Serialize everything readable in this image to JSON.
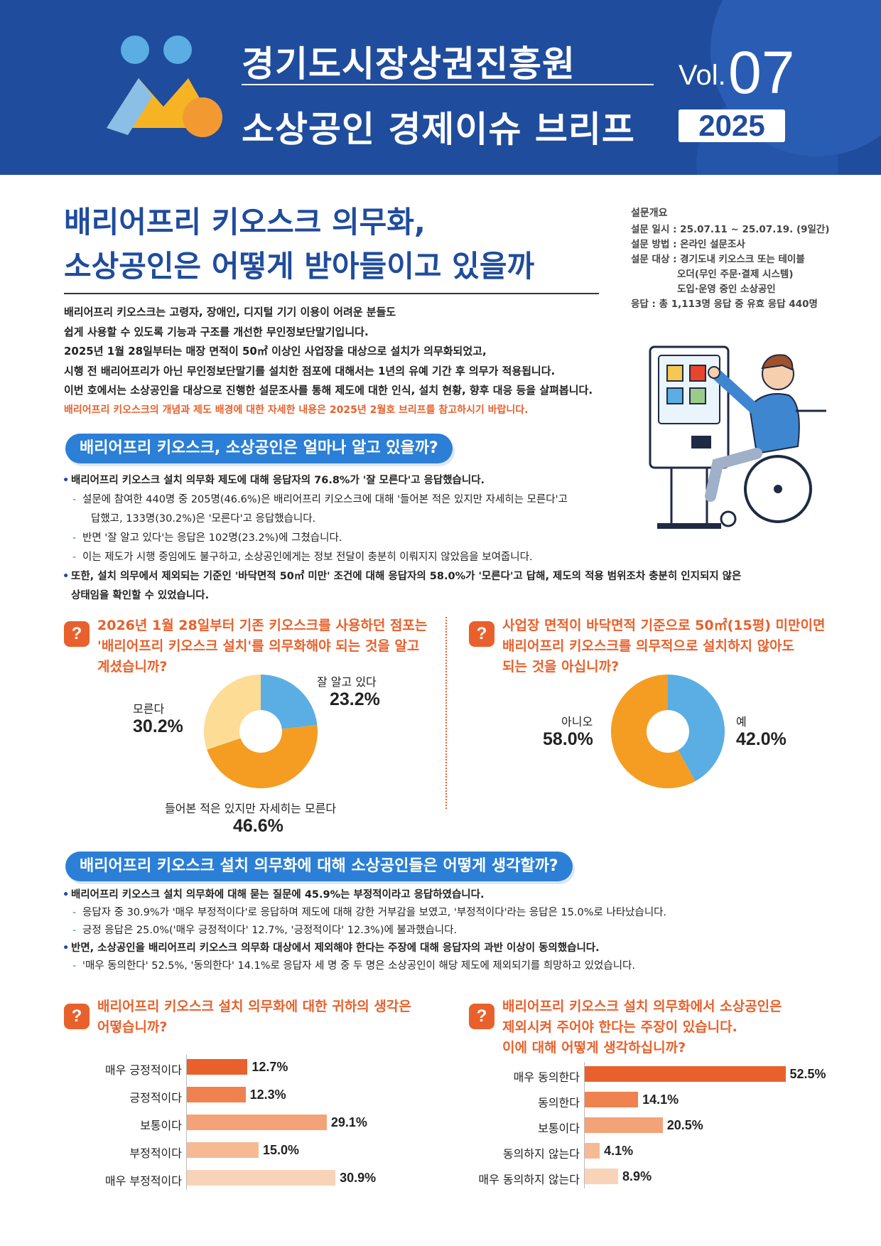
{
  "header": {
    "org": "경기도시장상권진흥원",
    "series": "소상공인 경제이슈 브리프",
    "vol_label": "Vol.",
    "vol_num": "07",
    "year": "2025"
  },
  "title": {
    "line1": "배리어프리 키오스크 의무화,",
    "line2": "소상공인은 어떻게 받아들이고 있을까"
  },
  "survey": {
    "heading": "설문개요",
    "date": "설문 일시 : 25.07.11 ~ 25.07.19. (9일간)",
    "method": "설문 방법 : 온라인 설문조사",
    "target1": "설문 대상 : 경기도내 키오스크 또는 테이블",
    "target2": "오더(무인 주문·결제 시스템)",
    "target3": "도입·운영 중인 소상공인",
    "response": "응답 : 총 1,113명 응답 중 유효 응답 440명"
  },
  "intro": {
    "p1": "배리어프리 키오스크는 고령자, 장애인, 디지털 기기 이용이 어려운 분들도",
    "p2": "쉽게 사용할 수 있도록 기능과 구조를 개선한 무인정보단말기입니다.",
    "p3": "2025년 1월 28일부터는 매장 면적이 50㎡ 이상인 사업장을 대상으로 설치가 의무화되었고,",
    "p4": "시행 전 배리어프리가 아닌 무인정보단말기를 설치한 점포에 대해서는 1년의 유예 기간 후 의무가 적용됩니다.",
    "p5": "이번 호에서는 소상공인을 대상으로 진행한 설문조사를 통해 제도에 대한 인식, 설치 현황, 향후 대응 등을 살펴봅니다.",
    "note": "배리어프리 키오스크의 개념과 제도 배경에 대한 자세한 내용은 2025년 2월호 브리프를 참고하시기 바랍니다."
  },
  "section1": {
    "title": "배리어프리 키오스크, 소상공인은 얼마나 알고 있을까?",
    "b1": "배리어프리 키오스크 설치 의무화 제도에 대해 응답자의 76.8%가 '잘 모른다'고 응답했습니다.",
    "b1a": "설문에 참여한 440명 중 205명(46.6%)은 배리어프리 키오스크에 대해 '들어본 적은 있지만 자세히는 모른다'고",
    "b1a2": "답했고, 133명(30.2%)은 '모른다'고 응답했습니다.",
    "b1b": "반면 '잘 알고 있다'는 응답은 102명(23.2%)에 그쳤습니다.",
    "b1c": "이는 제도가 시행 중임에도 불구하고, 소상공인에게는 정보 전달이 충분히 이뤄지지 않았음을 보여줍니다.",
    "b2": "또한, 설치 의무에서 제외되는 기준인 '바닥면적 50㎡ 미만' 조건에 대해 응답자의 58.0%가 '모른다'고 답해, 제도의 적용 범위조차 충분히 인지되지 않은",
    "b2b": "상태임을 확인할 수 있었습니다."
  },
  "q1": {
    "icon": "?",
    "text1": "2026년 1월 28일부터 기존 키오스크를 사용하던 점포는",
    "text2": "'배리어프리 키오스크 설치'를 의무화해야 되는 것을 알고",
    "text3": "계셨습니까?"
  },
  "q2": {
    "icon": "?",
    "text1": "사업장 면적이 바닥면적 기준으로 50㎡(15평) 미만이면",
    "text2": "배리어프리 키오스크를 의무적으로 설치하지 않아도",
    "text3": "되는 것을 아십니까?"
  },
  "section2": {
    "title": "배리어프리 키오스크 설치 의무화에 대해 소상공인들은 어떻게 생각할까?",
    "b1": "배리어프리 키오스크 설치 의무화에 대해 묻는 질문에 45.9%는 부정적이라고 응답하였습니다.",
    "b1a": "응답자 중 30.9%가 '매우 부정적이다'로 응답하며 제도에 대해 강한 거부감을 보였고, '부정적이다'라는 응답은 15.0%로 나타났습니다.",
    "b1b": "긍정 응답은 25.0%('매우 긍정적이다' 12.7%, '긍정적이다' 12.3%)에 불과했습니다.",
    "b2": "반면, 소상공인을 배리어프리 키오스크 의무화 대상에서 제외해야 한다는 주장에 대해 응답자의 과반 이상이 동의했습니다.",
    "b2a": "'매우 동의한다' 52.5%, '동의한다' 14.1%로 응답자 세 명 중 두 명은 소상공인이 해당 제도에 제외되기를 희망하고 있었습니다."
  },
  "q3": {
    "icon": "?",
    "text1": "배리어프리 키오스크 설치 의무화에 대한 귀하의 생각은",
    "text2": "어떻습니까?"
  },
  "q4": {
    "icon": "?",
    "text1": "배리어프리 키오스크 설치 의무화에서 소상공인은",
    "text2": "제외시켜 주어야 한다는 주장이 있습니다.",
    "text3": "이에 대해 어떻게 생각하십니까?"
  },
  "chart_data": [
    {
      "type": "pie",
      "categories": [
        "잘 알고 있다",
        "들어본 적은 있지만 자세히는 모른다",
        "모른다"
      ],
      "values": [
        23.2,
        46.6,
        30.2
      ],
      "labels": [
        "23.2%",
        "46.6%",
        "30.2%"
      ],
      "colors": [
        "#5aaee3",
        "#f49d22",
        "#fddc96"
      ]
    },
    {
      "type": "pie",
      "categories": [
        "예",
        "아니오"
      ],
      "values": [
        42.0,
        58.0
      ],
      "labels": [
        "42.0%",
        "58.0%"
      ],
      "colors": [
        "#5aaee3",
        "#f49d22"
      ]
    },
    {
      "type": "bar",
      "categories": [
        "매우 긍정적이다",
        "긍정적이다",
        "보통이다",
        "부정적이다",
        "매우 부정적이다"
      ],
      "values": [
        12.7,
        12.3,
        29.1,
        15.0,
        30.9
      ],
      "labels": [
        "12.7%",
        "12.3%",
        "29.1%",
        "15.0%",
        "30.9%"
      ],
      "colors": [
        "#e8612c",
        "#ef824f",
        "#f3a377",
        "#f6b994",
        "#f9d3b7"
      ]
    },
    {
      "type": "bar",
      "categories": [
        "매우 동의한다",
        "동의한다",
        "보통이다",
        "동의하지 않는다",
        "매우 동의하지 않는다"
      ],
      "values": [
        52.5,
        14.1,
        20.5,
        4.1,
        8.9
      ],
      "labels": [
        "52.5%",
        "14.1%",
        "20.5%",
        "4.1%",
        "8.9%"
      ],
      "colors": [
        "#e8612c",
        "#ef824f",
        "#f3a377",
        "#f6b994",
        "#f9d3b7"
      ]
    }
  ]
}
